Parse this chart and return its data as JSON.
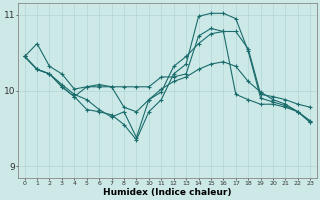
{
  "xlabel": "Humidex (Indice chaleur)",
  "ylabel": "",
  "bg_color": "#cce9e8",
  "line_color": "#1a6b6b",
  "grid_color": "#b8d8d8",
  "xlim": [
    -0.5,
    23.5
  ],
  "ylim": [
    8.85,
    11.15
  ],
  "yticks": [
    9,
    10,
    11
  ],
  "xticks": [
    0,
    1,
    2,
    3,
    4,
    5,
    6,
    7,
    8,
    9,
    10,
    11,
    12,
    13,
    14,
    15,
    16,
    17,
    18,
    19,
    20,
    21,
    22,
    23
  ],
  "lines": [
    [
      10.45,
      10.62,
      10.32,
      10.22,
      10.02,
      10.05,
      10.08,
      10.05,
      10.05,
      10.05,
      10.05,
      10.18,
      10.18,
      10.22,
      10.72,
      10.82,
      10.78,
      10.78,
      10.55,
      9.95,
      9.92,
      9.88,
      9.82,
      9.78
    ],
    [
      10.45,
      10.28,
      10.22,
      10.05,
      9.92,
      10.05,
      10.05,
      10.05,
      9.78,
      9.72,
      9.88,
      10.02,
      10.12,
      10.18,
      10.28,
      10.35,
      10.38,
      10.32,
      10.12,
      9.98,
      9.88,
      9.82,
      9.72,
      9.6
    ],
    [
      10.45,
      10.28,
      10.22,
      10.05,
      9.92,
      9.75,
      9.72,
      9.68,
      9.55,
      9.35,
      9.72,
      9.88,
      10.22,
      10.35,
      10.98,
      11.02,
      11.02,
      10.95,
      10.52,
      9.9,
      9.85,
      9.8,
      9.72,
      9.58
    ],
    [
      10.45,
      10.28,
      10.22,
      10.08,
      9.95,
      9.88,
      9.75,
      9.65,
      9.72,
      9.38,
      9.88,
      9.98,
      10.32,
      10.45,
      10.62,
      10.75,
      10.78,
      9.95,
      9.88,
      9.82,
      9.82,
      9.78,
      9.72,
      9.58
    ]
  ]
}
